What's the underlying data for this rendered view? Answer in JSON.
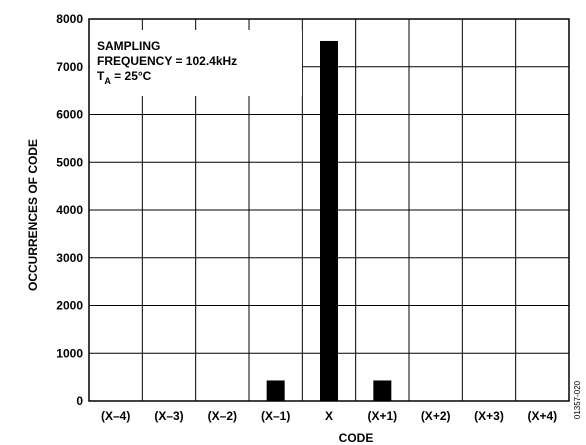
{
  "chart_data": {
    "type": "bar",
    "categories": [
      "(X–4)",
      "(X–3)",
      "(X–2)",
      "(X–1)",
      "X",
      "(X+1)",
      "(X+2)",
      "(X+3)",
      "(X+4)"
    ],
    "values": [
      0,
      0,
      0,
      430,
      7540,
      430,
      0,
      0,
      0
    ],
    "xlabel": "CODE",
    "ylabel": "OCCURRENCES OF CODE",
    "ylim": [
      0,
      8000
    ],
    "yticks": [
      0,
      1000,
      2000,
      3000,
      4000,
      5000,
      6000,
      7000,
      8000
    ],
    "grid": true,
    "bar_color": "#000000",
    "annotation": {
      "line1": "SAMPLING",
      "line2": "FREQUENCY = 102.4kHz",
      "line3_main": "T",
      "line3_sub": "A",
      "line3_rest": " = 25°C"
    },
    "figure_id": "01357-020"
  }
}
